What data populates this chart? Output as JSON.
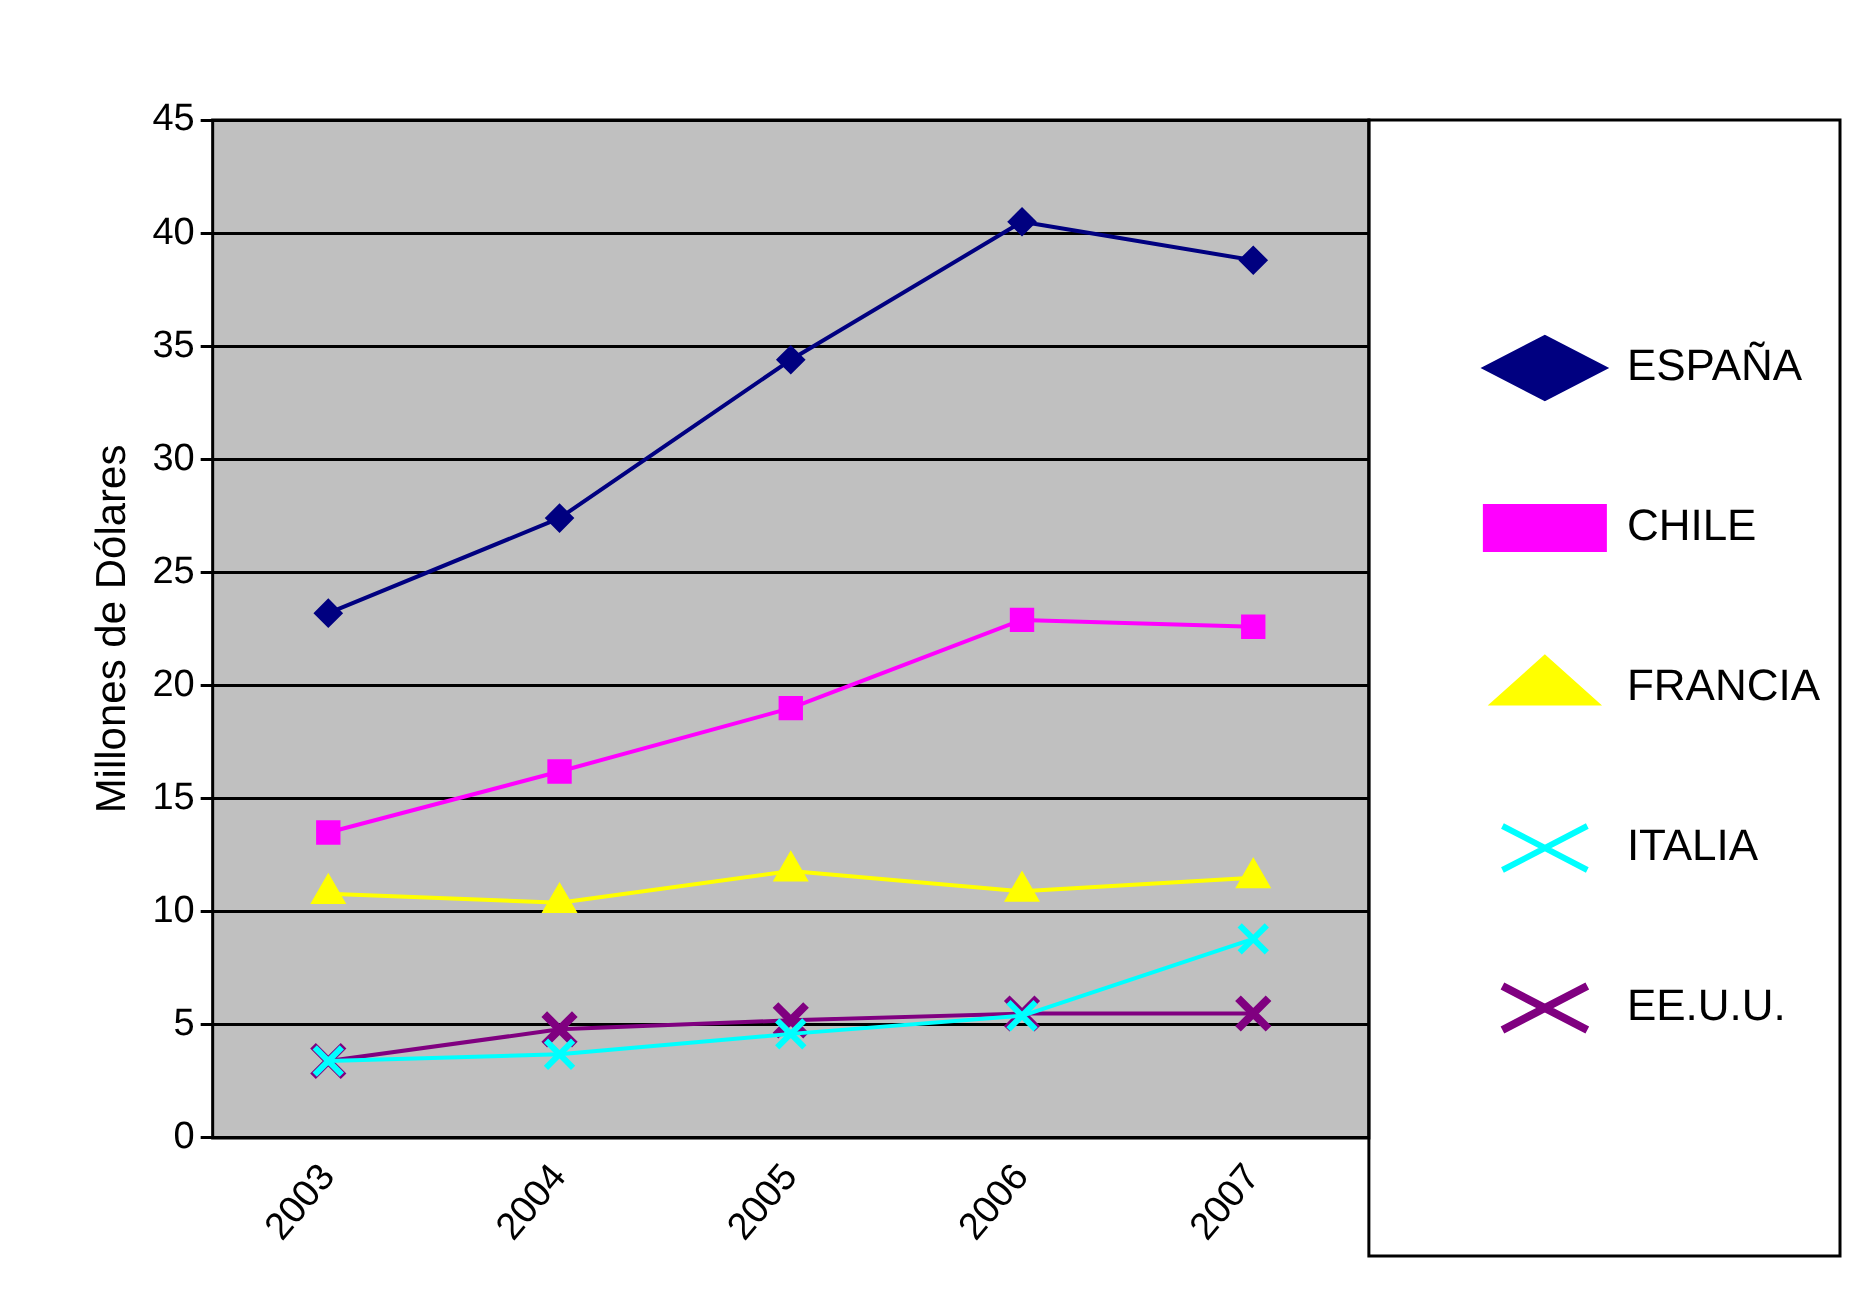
{
  "chart_data": {
    "type": "line",
    "ylabel": "Millones de Dólares",
    "categories": [
      "2003",
      "2004",
      "2005",
      "2006",
      "2007"
    ],
    "ylim": [
      0,
      45
    ],
    "yticks": [
      0,
      5,
      10,
      15,
      20,
      25,
      30,
      35,
      40,
      45
    ],
    "grid": "y",
    "legend": "right",
    "series": [
      {
        "name": "ESPAÑA",
        "color": "#000080",
        "marker": "diamond",
        "values": [
          23.2,
          27.4,
          34.4,
          40.5,
          38.8
        ]
      },
      {
        "name": "CHILE",
        "color": "#ff00ff",
        "marker": "square",
        "values": [
          13.5,
          16.2,
          19.0,
          22.9,
          22.6
        ]
      },
      {
        "name": "FRANCIA",
        "color": "#ffff00",
        "marker": "triangle",
        "values": [
          10.8,
          10.4,
          11.8,
          10.9,
          11.5
        ]
      },
      {
        "name": "ITALIA",
        "color": "#00ffff",
        "marker": "cross",
        "values": [
          3.4,
          3.7,
          4.6,
          5.4,
          8.8
        ]
      },
      {
        "name": "EE.U.U.",
        "color": "#800080",
        "marker": "cross",
        "values": [
          3.4,
          4.8,
          5.2,
          5.5,
          5.5
        ]
      }
    ]
  }
}
